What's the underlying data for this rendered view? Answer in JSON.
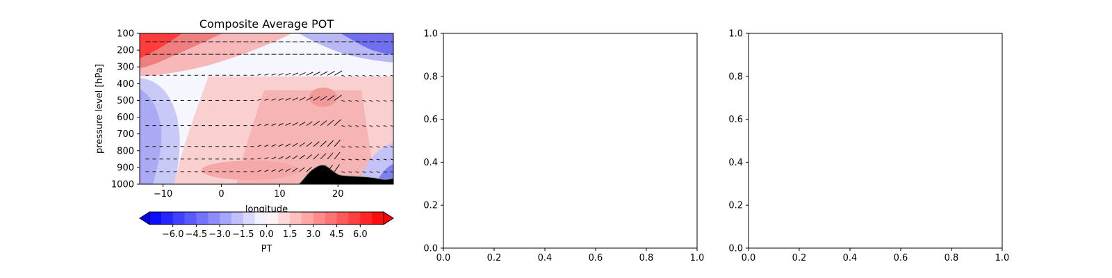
{
  "chart_data": [
    {
      "type": "contourf",
      "title": "Composite Average POT",
      "xlabel": "longitude",
      "ylabel": "pressure level [hPa]",
      "xlim": [
        -14,
        29.5
      ],
      "ylim": [
        1000,
        100
      ],
      "y_inverted": true,
      "x_ticks": [
        -10,
        0,
        10,
        20
      ],
      "x_tick_labels": [
        "−10",
        "0",
        "10",
        "20"
      ],
      "y_ticks": [
        100,
        200,
        300,
        400,
        500,
        600,
        700,
        800,
        900,
        1000
      ],
      "y_tick_labels": [
        "100",
        "200",
        "300",
        "400",
        "500",
        "600",
        "700",
        "800",
        "900",
        "1000"
      ],
      "wind_vectors": true,
      "terrain_color": "#000000",
      "colorbar": {
        "label": "PT",
        "orientation": "horizontal",
        "extend": "both",
        "cmap": "bwr",
        "range": [
          -7.5,
          7.5
        ],
        "ticks": [
          -6.0,
          -4.5,
          -3.0,
          -1.5,
          0.0,
          1.5,
          3.0,
          4.5,
          6.0
        ],
        "tick_labels": [
          "−6.0",
          "−4.5",
          "−3.0",
          "−1.5",
          "0.0",
          "1.5",
          "3.0",
          "4.5",
          "6.0"
        ]
      }
    },
    {
      "type": "empty",
      "xlim": [
        0,
        1
      ],
      "ylim": [
        0,
        1
      ],
      "x_tick_labels": [
        "0.0",
        "0.2",
        "0.4",
        "0.6",
        "0.8",
        "1.0"
      ],
      "y_tick_labels": [
        "0.0",
        "0.2",
        "0.4",
        "0.6",
        "0.8",
        "1.0"
      ]
    },
    {
      "type": "empty",
      "xlim": [
        0,
        1
      ],
      "ylim": [
        0,
        1
      ],
      "x_tick_labels": [
        "0.0",
        "0.2",
        "0.4",
        "0.6",
        "0.8",
        "1.0"
      ],
      "y_tick_labels": [
        "0.0",
        "0.2",
        "0.4",
        "0.6",
        "0.8",
        "1.0"
      ]
    }
  ]
}
